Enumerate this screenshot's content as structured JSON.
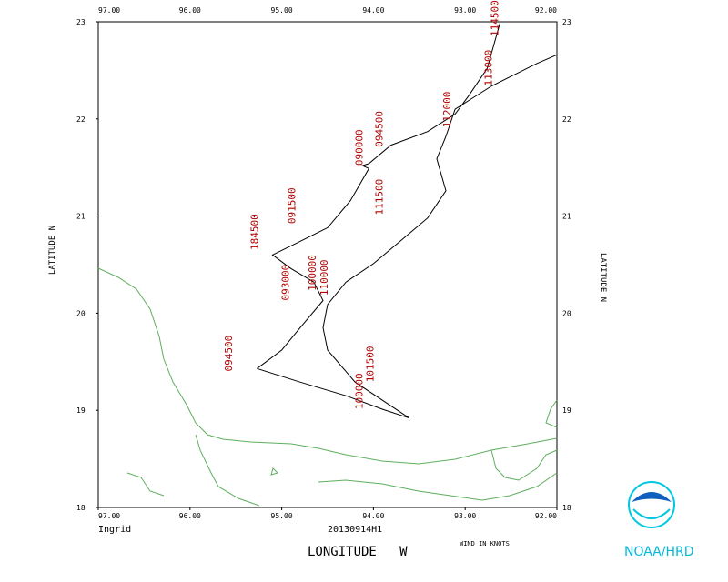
{
  "chart_data": {
    "type": "track",
    "storm": "Ingrid",
    "mission": "20130914H1",
    "xlabel": "LONGITUDE   W",
    "ylabel": "LATITUDE   N",
    "wind_note": "WIND IN KNOTS",
    "credit": "NOAA/HRD",
    "xlim": [
      97,
      92
    ],
    "ylim": [
      18,
      23
    ],
    "xticks": [
      {
        "value": 97,
        "label": "97.00"
      },
      {
        "value": 96,
        "label": "96.00"
      },
      {
        "value": 95,
        "label": "95.00"
      },
      {
        "value": 94,
        "label": "94.00"
      },
      {
        "value": 93,
        "label": "93.00"
      },
      {
        "value": 92,
        "label": "92.00"
      }
    ],
    "yticks": [
      18,
      19,
      20,
      21,
      22,
      23
    ],
    "track": {
      "color": "#000000",
      "x": [
        95.27,
        95.0,
        94.8,
        94.55,
        94.65,
        94.9,
        95.1,
        94.8,
        94.5,
        94.25,
        94.05,
        94.12,
        94.05,
        93.81,
        93.41,
        93.11,
        92.96,
        92.76,
        92.62,
        null,
        92.0,
        92.22,
        92.71,
        93.11,
        93.21,
        93.31,
        93.21,
        93.41,
        93.71,
        94.0,
        94.3,
        94.5,
        94.55,
        94.5,
        94.2,
        93.61,
        93.9,
        94.3,
        94.8,
        95.27
      ],
      "y": [
        19.43,
        19.62,
        19.85,
        20.13,
        20.32,
        20.46,
        20.6,
        20.74,
        20.88,
        21.16,
        21.49,
        21.52,
        21.54,
        21.73,
        21.87,
        22.05,
        22.24,
        22.52,
        22.99,
        null,
        22.66,
        22.57,
        22.34,
        22.1,
        21.82,
        21.59,
        21.26,
        20.98,
        20.74,
        20.51,
        20.32,
        20.09,
        19.85,
        19.62,
        19.29,
        18.92,
        19.01,
        19.15,
        19.29,
        19.43
      ]
    },
    "time_labels": {
      "color": "#b00000",
      "text": [
        "114500",
        "113000",
        "112000",
        "090000",
        "094500",
        "091500",
        "111500",
        "184500",
        "093000",
        "100000",
        "110000",
        "101500",
        "100000",
        "094500"
      ],
      "x": [
        92.64,
        92.71,
        93.16,
        94.12,
        93.9,
        94.85,
        93.9,
        95.26,
        94.92,
        94.63,
        94.5,
        94.0,
        94.12,
        95.54
      ],
      "y": [
        22.85,
        22.34,
        21.91,
        21.52,
        21.71,
        20.92,
        21.01,
        20.65,
        20.13,
        20.23,
        20.18,
        19.29,
        19.01,
        19.4
      ]
    }
  }
}
